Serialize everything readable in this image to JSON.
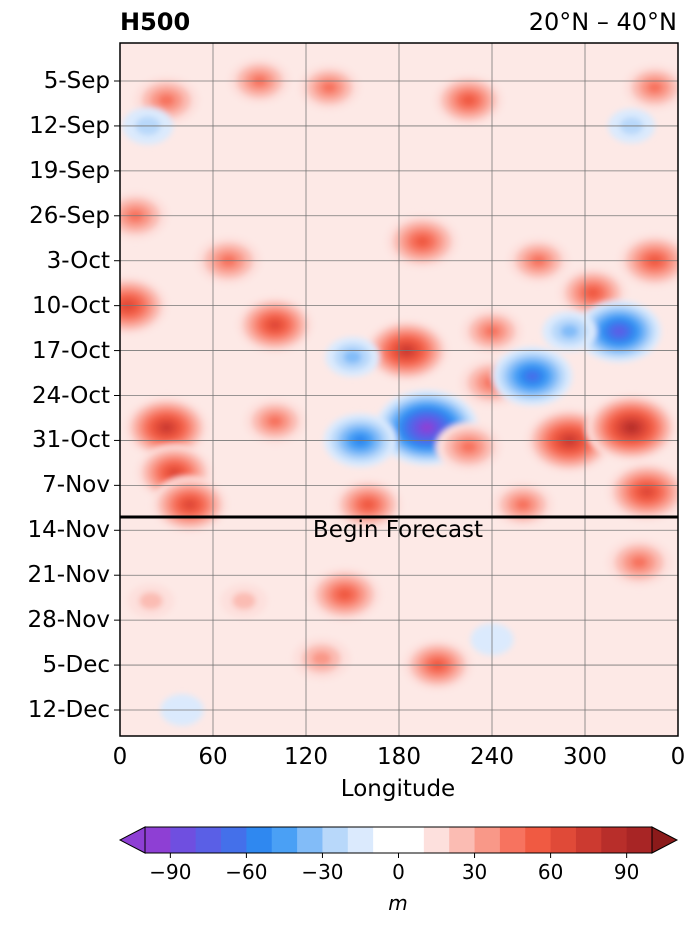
{
  "chart_data": {
    "type": "heatmap",
    "title_left": "H500",
    "title_right": "20°N – 40°N",
    "xlabel": "Longitude",
    "x_ticks": [
      "0",
      "60",
      "120",
      "180",
      "240",
      "300",
      "0"
    ],
    "x_range": [
      0,
      360
    ],
    "y_ticks": [
      "5-Sep",
      "12-Sep",
      "19-Sep",
      "26-Sep",
      "3-Oct",
      "10-Oct",
      "17-Oct",
      "24-Oct",
      "31-Oct",
      "7-Nov",
      "14-Nov",
      "21-Nov",
      "28-Nov",
      "5-Dec",
      "12-Dec"
    ],
    "annotation": "Begin Forecast",
    "forecast_start_approx": "11-Nov",
    "grid": true,
    "colorbar": {
      "label": "m",
      "ticks": [
        "−90",
        "−60",
        "−30",
        "0",
        "30",
        "60",
        "90"
      ],
      "range": [
        -100,
        100
      ],
      "step": 10,
      "colors": [
        "#8e3fd4",
        "#6f4fe0",
        "#5a5fe6",
        "#4470ea",
        "#2f88f0",
        "#4aa0f5",
        "#82bcf8",
        "#b8d8fa",
        "#dbeafd",
        "#ffffff",
        "#ffffff",
        "#fde0dd",
        "#fbbcb3",
        "#f99888",
        "#f7735f",
        "#f05a42",
        "#e04a38",
        "#cc3a30",
        "#b82e2a",
        "#a82525"
      ],
      "extend": "both"
    },
    "anomalies": [
      {
        "lon": 30,
        "date": "8-Sep",
        "value": 45
      },
      {
        "lon": 90,
        "date": "5-Sep",
        "value": 40
      },
      {
        "lon": 135,
        "date": "6-Sep",
        "value": 40
      },
      {
        "lon": 225,
        "date": "8-Sep",
        "value": 50
      },
      {
        "lon": 345,
        "date": "6-Sep",
        "value": 40
      },
      {
        "lon": 18,
        "date": "12-Sep",
        "value": -25
      },
      {
        "lon": 330,
        "date": "12-Sep",
        "value": -20
      },
      {
        "lon": 10,
        "date": "26-Sep",
        "value": 45
      },
      {
        "lon": 70,
        "date": "3-Oct",
        "value": 45
      },
      {
        "lon": 195,
        "date": "30-Sep",
        "value": 55
      },
      {
        "lon": 270,
        "date": "3-Oct",
        "value": 40
      },
      {
        "lon": 345,
        "date": "3-Oct",
        "value": 55
      },
      {
        "lon": 5,
        "date": "10-Oct",
        "value": 65
      },
      {
        "lon": 100,
        "date": "13-Oct",
        "value": 60
      },
      {
        "lon": 305,
        "date": "8-Oct",
        "value": 50
      },
      {
        "lon": 185,
        "date": "17-Oct",
        "value": 70
      },
      {
        "lon": 240,
        "date": "14-Oct",
        "value": 40
      },
      {
        "lon": 322,
        "date": "14-Oct",
        "value": -70
      },
      {
        "lon": 290,
        "date": "14-Oct",
        "value": -30
      },
      {
        "lon": 240,
        "date": "22-Oct",
        "value": 45
      },
      {
        "lon": 198,
        "date": "29-Oct",
        "value": -95
      },
      {
        "lon": 150,
        "date": "18-Oct",
        "value": -30
      },
      {
        "lon": 155,
        "date": "31-Oct",
        "value": -55
      },
      {
        "lon": 266,
        "date": "21-Oct",
        "value": -65
      },
      {
        "lon": 290,
        "date": "31-Oct",
        "value": 75
      },
      {
        "lon": 330,
        "date": "29-Oct",
        "value": 80
      },
      {
        "lon": 30,
        "date": "29-Oct",
        "value": 70
      },
      {
        "lon": 35,
        "date": "5-Nov",
        "value": 60
      },
      {
        "lon": 100,
        "date": "28-Oct",
        "value": 40
      },
      {
        "lon": 225,
        "date": "1-Nov",
        "value": 45
      },
      {
        "lon": 45,
        "date": "10-Nov",
        "value": 60
      },
      {
        "lon": 160,
        "date": "10-Nov",
        "value": 50
      },
      {
        "lon": 260,
        "date": "10-Nov",
        "value": 40
      },
      {
        "lon": 340,
        "date": "8-Nov",
        "value": 65
      },
      {
        "lon": 145,
        "date": "24-Nov",
        "value": 55
      },
      {
        "lon": 130,
        "date": "4-Dec",
        "value": 35
      },
      {
        "lon": 205,
        "date": "5-Dec",
        "value": 50
      },
      {
        "lon": 335,
        "date": "19-Nov",
        "value": 45
      },
      {
        "lon": 20,
        "date": "25-Nov",
        "value": 20
      },
      {
        "lon": 80,
        "date": "25-Nov",
        "value": 20
      },
      {
        "lon": 240,
        "date": "1-Dec",
        "value": -15
      },
      {
        "lon": 40,
        "date": "12-Dec",
        "value": -15
      }
    ]
  }
}
